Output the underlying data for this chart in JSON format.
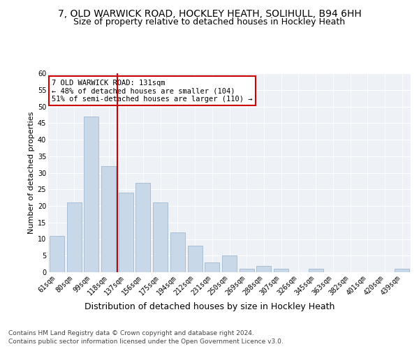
{
  "title1": "7, OLD WARWICK ROAD, HOCKLEY HEATH, SOLIHULL, B94 6HH",
  "title2": "Size of property relative to detached houses in Hockley Heath",
  "xlabel": "Distribution of detached houses by size in Hockley Heath",
  "ylabel": "Number of detached properties",
  "categories": [
    "61sqm",
    "80sqm",
    "99sqm",
    "118sqm",
    "137sqm",
    "156sqm",
    "175sqm",
    "194sqm",
    "212sqm",
    "231sqm",
    "250sqm",
    "269sqm",
    "288sqm",
    "307sqm",
    "326sqm",
    "345sqm",
    "363sqm",
    "382sqm",
    "401sqm",
    "420sqm",
    "439sqm"
  ],
  "values": [
    11,
    21,
    47,
    32,
    24,
    27,
    21,
    12,
    8,
    3,
    5,
    1,
    2,
    1,
    0,
    1,
    0,
    0,
    0,
    0,
    1
  ],
  "bar_color": "#c8d8e8",
  "bar_edge_color": "#a0b8d0",
  "vline_x_index": 4,
  "vline_color": "#cc0000",
  "annotation_text": "7 OLD WARWICK ROAD: 131sqm\n← 48% of detached houses are smaller (104)\n51% of semi-detached houses are larger (110) →",
  "annotation_box_facecolor": "#ffffff",
  "annotation_box_edgecolor": "#cc0000",
  "ylim": [
    0,
    60
  ],
  "yticks": [
    0,
    5,
    10,
    15,
    20,
    25,
    30,
    35,
    40,
    45,
    50,
    55,
    60
  ],
  "plot_bg_color": "#eef2f7",
  "grid_color": "#ffffff",
  "title1_fontsize": 10,
  "title2_fontsize": 9,
  "xlabel_fontsize": 9,
  "ylabel_fontsize": 8,
  "tick_fontsize": 7,
  "annotation_fontsize": 7.5,
  "footer1": "Contains HM Land Registry data © Crown copyright and database right 2024.",
  "footer2": "Contains public sector information licensed under the Open Government Licence v3.0.",
  "footer_fontsize": 6.5
}
